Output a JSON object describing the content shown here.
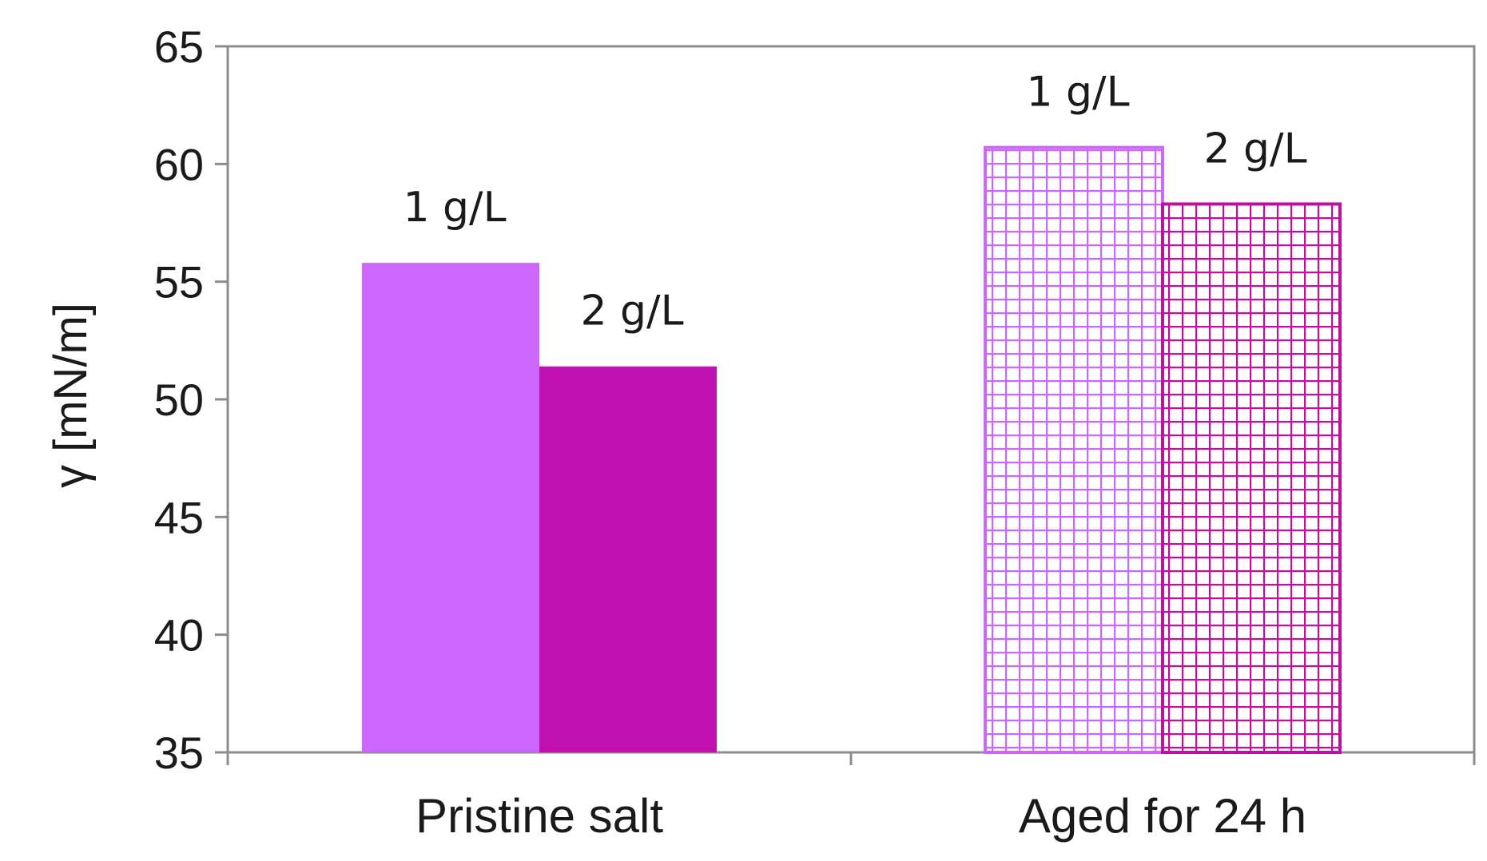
{
  "chart_data": {
    "type": "bar",
    "categories": [
      "Pristine salt",
      "Aged for 24 h"
    ],
    "series": [
      {
        "label_text": "1 g/L",
        "values": [
          55.8,
          60.7
        ],
        "colors": [
          "#cc66ff",
          "#cc66ff"
        ],
        "patterns": [
          "solid",
          "grid"
        ]
      },
      {
        "label_text": "2 g/L",
        "values": [
          51.4,
          58.3
        ],
        "colors": [
          "#c010b0",
          "#c010a0"
        ],
        "patterns": [
          "solid",
          "grid"
        ]
      }
    ],
    "ylabel": "γ [mN/m]",
    "ylim": [
      35,
      65
    ],
    "yticks": [
      35,
      40,
      45,
      50,
      55,
      60,
      65
    ],
    "grid": false
  }
}
